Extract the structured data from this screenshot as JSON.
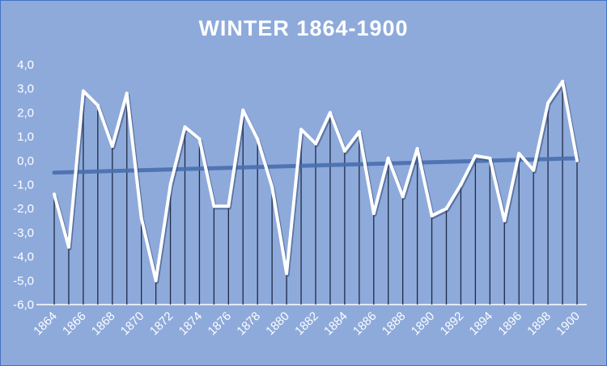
{
  "chart_data": {
    "type": "line",
    "title": "WINTER 1864-1900",
    "xlabel": "",
    "ylabel": "",
    "x": [
      1864,
      1865,
      1866,
      1867,
      1868,
      1869,
      1870,
      1871,
      1872,
      1873,
      1874,
      1875,
      1876,
      1877,
      1878,
      1879,
      1880,
      1881,
      1882,
      1883,
      1884,
      1885,
      1886,
      1887,
      1888,
      1889,
      1890,
      1891,
      1892,
      1893,
      1894,
      1895,
      1896,
      1897,
      1898,
      1899,
      1900
    ],
    "series": [
      {
        "values": [
          -1.4,
          -3.6,
          2.9,
          2.3,
          0.6,
          2.8,
          -2.4,
          -5.0,
          -1.0,
          1.4,
          0.9,
          -1.9,
          -1.9,
          2.1,
          0.9,
          -1.1,
          -4.7,
          1.3,
          0.7,
          2.0,
          0.4,
          1.2,
          -2.2,
          0.1,
          -1.5,
          0.5,
          -2.3,
          -2.0,
          -1.0,
          0.2,
          0.1,
          -2.5,
          0.3,
          -0.4,
          2.4,
          3.3,
          0.0
        ]
      }
    ],
    "trendline": {
      "start": -0.5,
      "end": 0.1
    },
    "ylim": [
      -6,
      4
    ],
    "yticks": [
      "4,0",
      "3,0",
      "2,0",
      "1,0",
      "0,0",
      "-1,0",
      "-2,0",
      "-3,0",
      "-4,0",
      "-5,0",
      "-6,0"
    ],
    "xticks": [
      "1864",
      "1866",
      "1868",
      "1870",
      "1872",
      "1874",
      "1876",
      "1878",
      "1880",
      "1882",
      "1884",
      "1886",
      "1888",
      "1890",
      "1892",
      "1894",
      "1896",
      "1898",
      "1900"
    ],
    "grid": false,
    "legend": "none",
    "colors": {
      "background": "#8eaadb",
      "line": "#ffffff",
      "drop_lines": "#1f2a44",
      "trend": "#4a6fae"
    }
  }
}
